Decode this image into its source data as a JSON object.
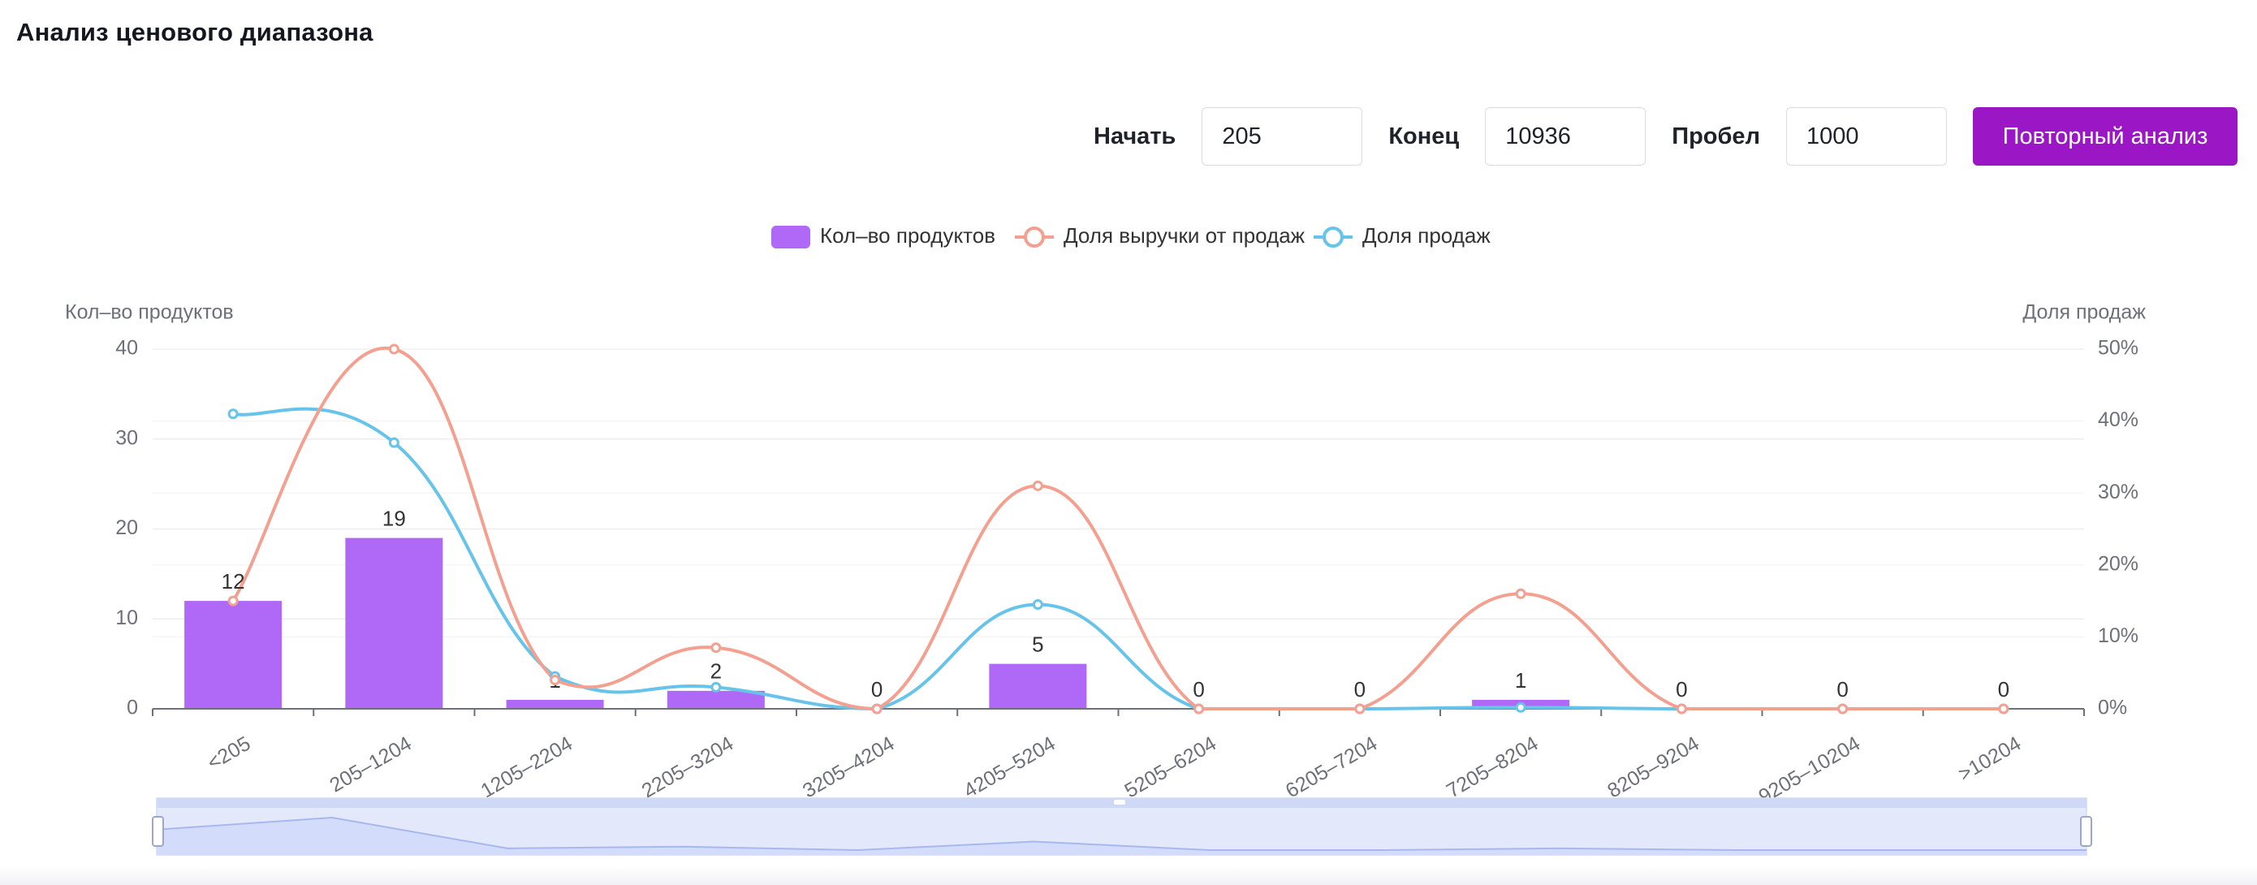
{
  "page_title": "Анализ ценового диапазона",
  "controls": {
    "start_label": "Начать",
    "start_value": "205",
    "end_label": "Конец",
    "end_value": "10936",
    "step_label": "Пробел",
    "step_value": "1000",
    "button_label": "Повторный анализ"
  },
  "chart_data": {
    "type": "bar",
    "categories": [
      "<205",
      "205–1204",
      "1205–2204",
      "2205–3204",
      "3205–4204",
      "4205–5204",
      "5205–6204",
      "6205–7204",
      "7205–8204",
      "8205–9204",
      "9205–10204",
      ">10204"
    ],
    "series": [
      {
        "name": "Кол–во продуктов",
        "type": "bar",
        "axis": "left",
        "color": "#b069f7",
        "values": [
          12,
          19,
          1,
          2,
          0,
          5,
          0,
          0,
          1,
          0,
          0,
          0
        ]
      },
      {
        "name": "Доля выручки от продаж",
        "type": "line",
        "axis": "right",
        "color": "#f4a090",
        "values": [
          15,
          50,
          4,
          8.5,
          0,
          31,
          0,
          0,
          16,
          0,
          0,
          0
        ]
      },
      {
        "name": "Доля продаж",
        "type": "line",
        "axis": "right",
        "color": "#66c3ea",
        "values": [
          41,
          37,
          4.5,
          3,
          0,
          14.5,
          0,
          0,
          0.2,
          0,
          0,
          0
        ]
      }
    ],
    "ylabel": "Кол–во продуктов",
    "ylabel_right": "Доля продаж",
    "ylim": [
      0,
      40
    ],
    "ylim_right": [
      0,
      50
    ],
    "yticks": [
      "0",
      "10",
      "20",
      "30",
      "40"
    ],
    "yticks_right": [
      "0%",
      "10%",
      "20%",
      "30%",
      "40%",
      "50%"
    ],
    "bar_labels": [
      "12",
      "19",
      "1",
      "2",
      "0",
      "5",
      "0",
      "0",
      "1",
      "0",
      "0",
      "0"
    ],
    "legend_position": "top-center",
    "grid": true,
    "data_zoom": true
  }
}
